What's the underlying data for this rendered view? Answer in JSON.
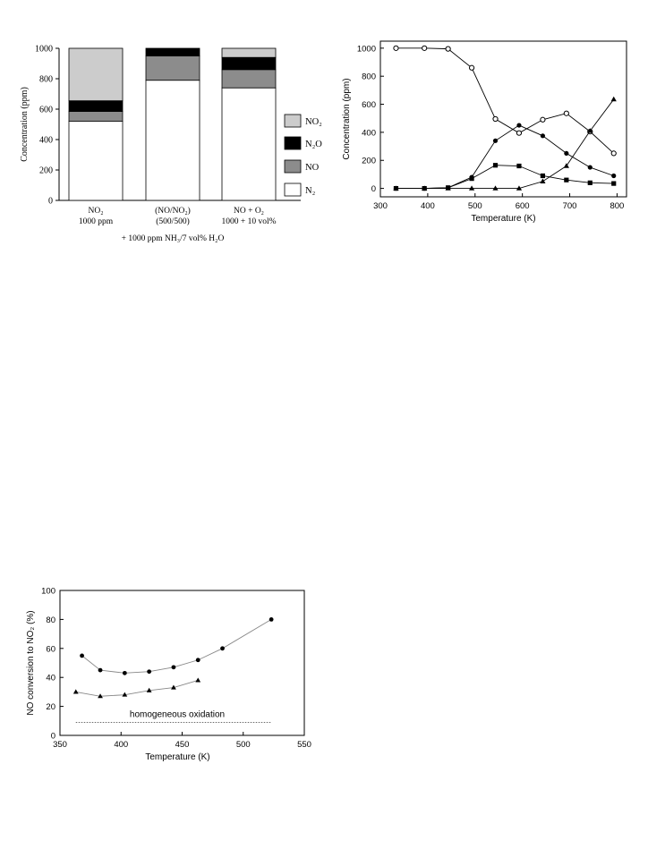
{
  "chart_data": [
    {
      "type": "bar",
      "stacked": true,
      "ylabel": "Concentration (ppm)",
      "ylim": [
        0,
        1000
      ],
      "yticks": [
        0,
        200,
        400,
        600,
        800,
        1000
      ],
      "categories": [
        {
          "line1": "NO₂",
          "line2": "1000 ppm"
        },
        {
          "line1": "(NO/NO₂)",
          "line2": "(500/500)"
        },
        {
          "line1": "NO + O₂",
          "line2": "1000 + 10 vol%"
        }
      ],
      "footnote": "+ 1000 ppm NH₃/7 vol% H₂O",
      "series": [
        {
          "name": "N₂",
          "color": "#ffffff",
          "values": [
            520,
            790,
            740
          ]
        },
        {
          "name": "NO",
          "color": "#8c8c8c",
          "values": [
            65,
            160,
            120
          ]
        },
        {
          "name": "N₂O",
          "color": "#000000",
          "values": [
            70,
            50,
            80
          ]
        },
        {
          "name": "NO₂",
          "color": "#cccccc",
          "values": [
            345,
            0,
            60
          ]
        }
      ],
      "legend_order": [
        "NO₂",
        "N₂O",
        "NO",
        "N₂"
      ],
      "legend_position": "right"
    },
    {
      "type": "line",
      "xlabel": "Temperature (K)",
      "ylabel": "Concentration (ppm)",
      "xlim": [
        300,
        820
      ],
      "ylim": [
        -60,
        1050
      ],
      "xticks": [
        300,
        400,
        500,
        600,
        700,
        800
      ],
      "yticks": [
        0,
        200,
        400,
        600,
        800,
        1000
      ],
      "series": [
        {
          "marker": "open-circle",
          "x": [
            333,
            393,
            443,
            493,
            543,
            593,
            643,
            693,
            743,
            793
          ],
          "y": [
            1000,
            1000,
            995,
            860,
            495,
            395,
            490,
            535,
            405,
            250
          ]
        },
        {
          "marker": "filled-circle",
          "x": [
            333,
            393,
            443,
            493,
            543,
            593,
            643,
            693,
            743,
            793
          ],
          "y": [
            0,
            0,
            5,
            80,
            340,
            450,
            375,
            250,
            150,
            90
          ]
        },
        {
          "marker": "filled-square",
          "x": [
            333,
            393,
            443,
            493,
            543,
            593,
            643,
            693,
            743,
            793
          ],
          "y": [
            0,
            0,
            5,
            70,
            165,
            160,
            90,
            60,
            40,
            35
          ]
        },
        {
          "marker": "filled-triangle",
          "x": [
            333,
            393,
            443,
            493,
            543,
            593,
            643,
            693,
            743,
            793
          ],
          "y": [
            0,
            0,
            0,
            0,
            0,
            0,
            50,
            160,
            410,
            635
          ]
        }
      ]
    },
    {
      "type": "line",
      "xlabel": "Temperature (K)",
      "ylabel": "NO conversion to NO₂ (%)",
      "xlim": [
        350,
        550
      ],
      "ylim": [
        0,
        100
      ],
      "xticks": [
        350,
        400,
        450,
        500,
        550
      ],
      "yticks": [
        0,
        20,
        40,
        60,
        80,
        100
      ],
      "annotation": "homogeneous oxidation",
      "reference_line": {
        "y": 9,
        "x": [
          363,
          523
        ],
        "style": "dotted"
      },
      "series": [
        {
          "marker": "filled-circle",
          "x": [
            368,
            383,
            403,
            423,
            443,
            463,
            483,
            523
          ],
          "y": [
            55,
            45,
            43,
            44,
            47,
            52,
            60,
            80
          ]
        },
        {
          "marker": "filled-triangle",
          "x": [
            363,
            383,
            403,
            423,
            443,
            463
          ],
          "y": [
            30,
            27,
            28,
            31,
            33,
            38
          ]
        }
      ]
    }
  ]
}
